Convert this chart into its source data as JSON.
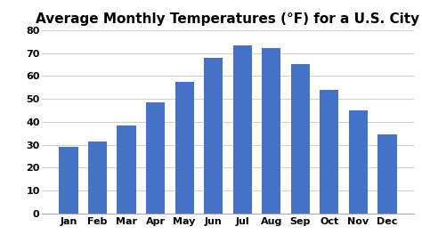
{
  "title": "Average Monthly Temperatures (°F) for a U.S. City",
  "months": [
    "Jan",
    "Feb",
    "Mar",
    "Apr",
    "May",
    "Jun",
    "Jul",
    "Aug",
    "Sep",
    "Oct",
    "Nov",
    "Dec"
  ],
  "values": [
    29,
    31.5,
    38.5,
    48.5,
    57.5,
    68,
    73.5,
    72,
    65,
    54,
    45,
    34.5
  ],
  "bar_color": "#4472C4",
  "ylim": [
    0,
    80
  ],
  "yticks": [
    0,
    10,
    20,
    30,
    40,
    50,
    60,
    70,
    80
  ],
  "background_color": "#ffffff",
  "title_fontsize": 11,
  "tick_fontsize": 8,
  "grid_color": "#d0d0d0",
  "bar_width": 0.65
}
